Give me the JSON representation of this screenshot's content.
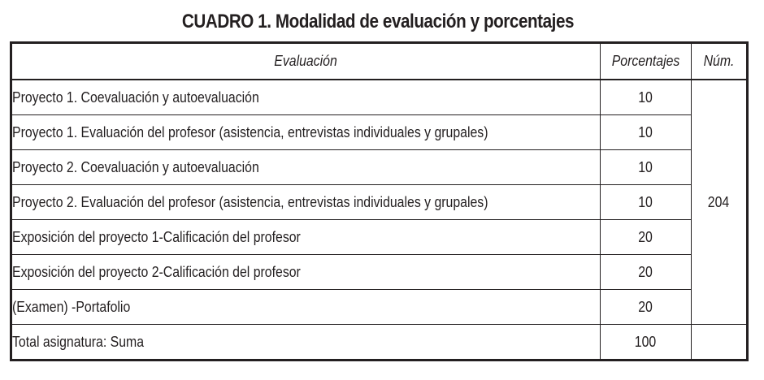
{
  "caption": {
    "label": "CUADRO 1.",
    "title": "Modalidad de evaluación y porcentajes"
  },
  "table": {
    "headers": {
      "evaluation": "Evaluación",
      "percentages": "Porcentajes",
      "number": "Núm."
    },
    "rows": [
      {
        "evaluation": "Proyecto 1. Coevaluación y autoevaluación",
        "percentage": "10"
      },
      {
        "evaluation": "Proyecto 1. Evaluación del profesor (asistencia, entrevistas individuales y grupales)",
        "percentage": "10"
      },
      {
        "evaluation": "Proyecto 2. Coevaluación y autoevaluación",
        "percentage": "10"
      },
      {
        "evaluation": "Proyecto 2. Evaluación del profesor (asistencia, entrevistas individuales y grupales)",
        "percentage": "10"
      },
      {
        "evaluation": "Exposición del proyecto 1-Calificación del profesor",
        "percentage": "20"
      },
      {
        "evaluation": "Exposición del proyecto 2-Calificación del profesor",
        "percentage": "20"
      },
      {
        "evaluation": "(Examen) -Portafolio",
        "percentage": "20"
      }
    ],
    "number_value": "204",
    "total": {
      "evaluation": "Total asignatura: Suma",
      "percentage": "100"
    }
  }
}
